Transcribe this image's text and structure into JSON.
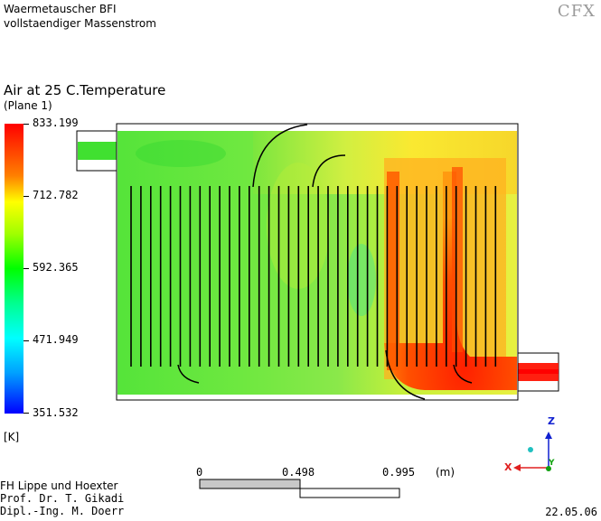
{
  "header": {
    "title_line1": "Waermetauscher BFI",
    "title_line2": "vollstaendiger Massenstrom",
    "logo": "CFX"
  },
  "legend": {
    "variable": "Air at 25 C.Temperature",
    "plane": "(Plane 1)",
    "ticks": [
      "833.199",
      "712.782",
      "592.365",
      "471.949",
      "351.532"
    ],
    "unit": "[K]",
    "colors": [
      "#ff0000",
      "#ffff00",
      "#00ff00",
      "#00ffff",
      "#0000ff"
    ]
  },
  "scale": {
    "labels": [
      "0",
      "0.498",
      "0.995"
    ],
    "unit": "(m)"
  },
  "axes": {
    "z": "Z",
    "x": "X",
    "y": "Y"
  },
  "credits": {
    "line1": "FH Lippe und Hoexter",
    "line2": "Prof. Dr. T. Gikadi",
    "line3": "Dipl.-Ing. M. Doerr"
  },
  "date": "22.05.06"
}
